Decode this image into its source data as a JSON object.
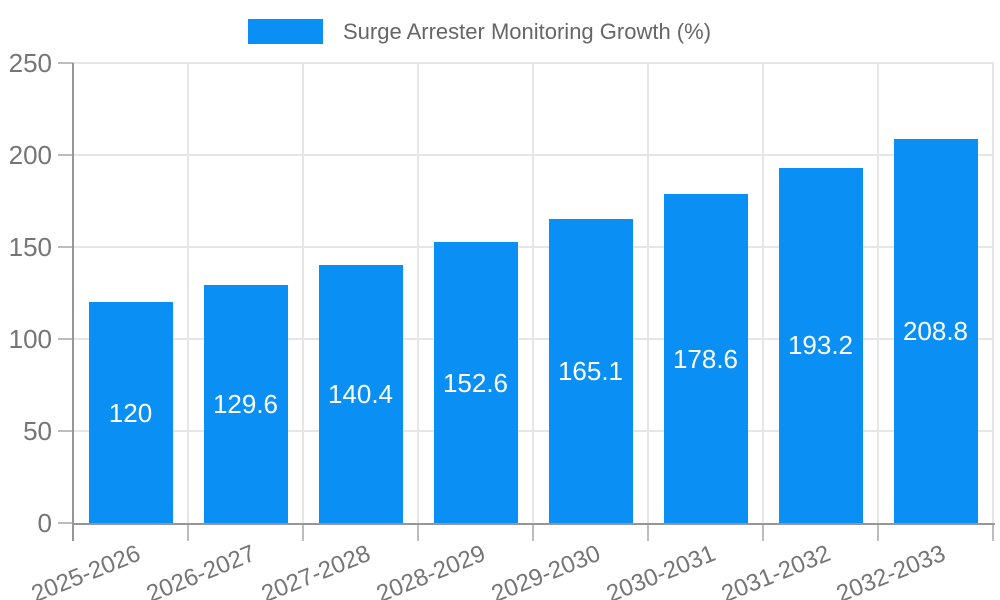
{
  "chart_data": {
    "type": "bar",
    "title": "Surge Arrester Monitoring Growth (%)",
    "legend": {
      "position": "top",
      "label": "Surge Arrester Monitoring Growth (%)"
    },
    "categories": [
      "2025-2026",
      "2026-2027",
      "2027-2028",
      "2028-2029",
      "2029-2030",
      "2030-2031",
      "2031-2032",
      "2032-2033"
    ],
    "values": [
      120,
      129.6,
      140.4,
      152.6,
      165.1,
      178.6,
      193.2,
      208.8
    ],
    "value_labels": [
      "120",
      "129.6",
      "140.4",
      "152.6",
      "165.1",
      "178.6",
      "193.2",
      "208.8"
    ],
    "xlabel": "",
    "ylabel": "",
    "ylim": [
      0,
      250
    ],
    "yticks": [
      0,
      50,
      100,
      150,
      200,
      250
    ],
    "ytick_labels": [
      "0",
      "50",
      "100",
      "150",
      "200",
      "250"
    ],
    "grid": true,
    "legend_position": "top-center",
    "x_label_rotation_deg": -22,
    "colors": {
      "bar": "#0a90f5",
      "value_label_text": "#ffffff",
      "axis_text": "#757575",
      "title_text": "#666666",
      "gridline": "#e6e6e6",
      "axis_line": "#969696",
      "tick": "#bdbdbd",
      "background": "#ffffff"
    }
  }
}
